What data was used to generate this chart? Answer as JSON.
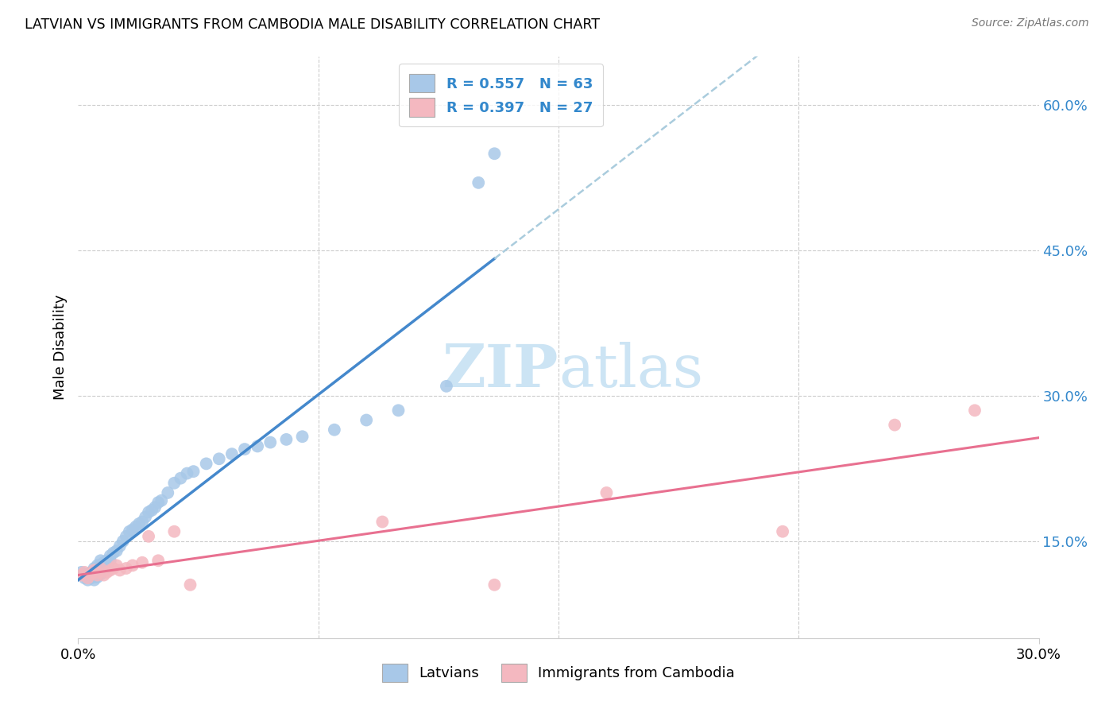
{
  "title": "LATVIAN VS IMMIGRANTS FROM CAMBODIA MALE DISABILITY CORRELATION CHART",
  "source": "Source: ZipAtlas.com",
  "ylabel": "Male Disability",
  "xmin": 0.0,
  "xmax": 0.3,
  "ymin": 0.05,
  "ymax": 0.65,
  "yticks": [
    0.15,
    0.3,
    0.45,
    0.6
  ],
  "ytick_labels": [
    "15.0%",
    "30.0%",
    "45.0%",
    "60.0%"
  ],
  "latvian_R": 0.557,
  "latvian_N": 63,
  "cambodia_R": 0.397,
  "cambodia_N": 27,
  "blue_scatter_color": "#a8c8e8",
  "blue_line_color": "#4488cc",
  "pink_scatter_color": "#f4b8c0",
  "pink_line_color": "#e87090",
  "legend_text_color": "#3388cc",
  "watermark_color": "#cce4f4",
  "latvian_x": [
    0.001,
    0.002,
    0.002,
    0.003,
    0.003,
    0.003,
    0.004,
    0.004,
    0.004,
    0.005,
    0.005,
    0.005,
    0.005,
    0.006,
    0.006,
    0.006,
    0.006,
    0.007,
    0.007,
    0.007,
    0.007,
    0.008,
    0.008,
    0.008,
    0.009,
    0.009,
    0.01,
    0.01,
    0.011,
    0.012,
    0.013,
    0.014,
    0.015,
    0.016,
    0.017,
    0.018,
    0.019,
    0.02,
    0.021,
    0.022,
    0.023,
    0.024,
    0.025,
    0.026,
    0.028,
    0.03,
    0.032,
    0.034,
    0.036,
    0.04,
    0.044,
    0.048,
    0.052,
    0.056,
    0.06,
    0.065,
    0.07,
    0.08,
    0.09,
    0.1,
    0.115,
    0.125,
    0.13
  ],
  "latvian_y": [
    0.118,
    0.115,
    0.112,
    0.11,
    0.113,
    0.116,
    0.112,
    0.115,
    0.118,
    0.11,
    0.113,
    0.118,
    0.122,
    0.113,
    0.116,
    0.12,
    0.125,
    0.116,
    0.12,
    0.125,
    0.13,
    0.12,
    0.125,
    0.128,
    0.125,
    0.13,
    0.13,
    0.135,
    0.138,
    0.14,
    0.145,
    0.15,
    0.155,
    0.16,
    0.162,
    0.165,
    0.168,
    0.17,
    0.175,
    0.18,
    0.182,
    0.185,
    0.19,
    0.192,
    0.2,
    0.21,
    0.215,
    0.22,
    0.222,
    0.23,
    0.235,
    0.24,
    0.245,
    0.248,
    0.252,
    0.255,
    0.258,
    0.265,
    0.275,
    0.285,
    0.31,
    0.52,
    0.55
  ],
  "cambodia_x": [
    0.001,
    0.002,
    0.003,
    0.004,
    0.005,
    0.006,
    0.006,
    0.007,
    0.008,
    0.009,
    0.01,
    0.011,
    0.012,
    0.013,
    0.015,
    0.017,
    0.02,
    0.022,
    0.025,
    0.03,
    0.035,
    0.095,
    0.13,
    0.165,
    0.22,
    0.255,
    0.28
  ],
  "cambodia_y": [
    0.115,
    0.118,
    0.112,
    0.116,
    0.12,
    0.115,
    0.118,
    0.122,
    0.115,
    0.118,
    0.12,
    0.122,
    0.125,
    0.12,
    0.122,
    0.125,
    0.128,
    0.155,
    0.13,
    0.16,
    0.105,
    0.17,
    0.105,
    0.2,
    0.16,
    0.27,
    0.285
  ],
  "blue_line_xmax": 0.13,
  "dash_line_xstart": 0.13,
  "dash_color": "#aaccdd"
}
